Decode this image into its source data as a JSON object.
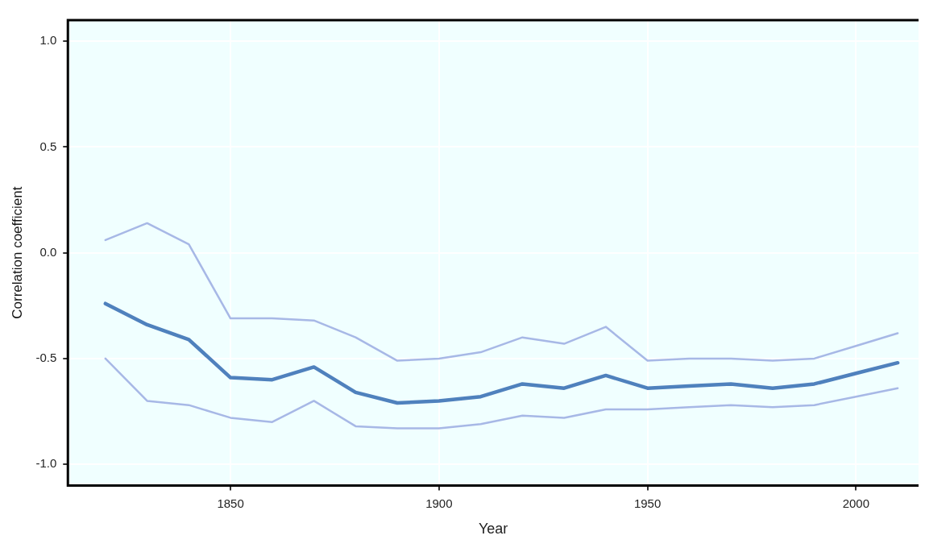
{
  "chart_data": {
    "type": "line",
    "xlabel": "Year",
    "ylabel": "Correlation coefficient",
    "x": [
      1820,
      1830,
      1840,
      1850,
      1860,
      1870,
      1880,
      1890,
      1900,
      1910,
      1920,
      1930,
      1940,
      1950,
      1960,
      1970,
      1980,
      1990,
      2000,
      2010
    ],
    "series": [
      {
        "color": "#4f81bd",
        "values": [
          -0.24,
          -0.34,
          -0.41,
          -0.59,
          -0.6,
          -0.54,
          -0.66,
          -0.71,
          -0.7,
          -0.68,
          -0.62,
          -0.64,
          -0.58,
          -0.64,
          -0.63,
          -0.62,
          -0.64,
          -0.62,
          -0.57,
          -0.52
        ]
      },
      {
        "color": "#a7b8e6",
        "values": [
          0.06,
          0.14,
          0.04,
          -0.31,
          -0.31,
          -0.32,
          -0.4,
          -0.51,
          -0.5,
          -0.47,
          -0.4,
          -0.43,
          -0.35,
          -0.51,
          -0.5,
          -0.5,
          -0.51,
          -0.5,
          -0.44,
          -0.38
        ]
      },
      {
        "color": "#a7b8e6",
        "values": [
          -0.5,
          -0.7,
          -0.72,
          -0.78,
          -0.8,
          -0.7,
          -0.82,
          -0.83,
          -0.83,
          -0.81,
          -0.77,
          -0.78,
          -0.74,
          -0.74,
          -0.73,
          -0.72,
          -0.73,
          -0.72,
          -0.68,
          -0.64
        ]
      }
    ],
    "xlim": [
      1811,
      2015
    ],
    "ylim": [
      -1.1,
      1.1
    ],
    "xticks": [
      1850,
      1900,
      1950,
      2000
    ],
    "yticks": [
      {
        "value": -1,
        "label": "-1.0"
      },
      {
        "value": -0.5,
        "label": "-0.5"
      },
      {
        "value": 0,
        "label": "0.0"
      },
      {
        "value": 0.5,
        "label": "0.5"
      },
      {
        "value": 1,
        "label": "1.0"
      }
    ],
    "grid": true,
    "legend": false,
    "marker": "none",
    "line_style": "solid"
  }
}
